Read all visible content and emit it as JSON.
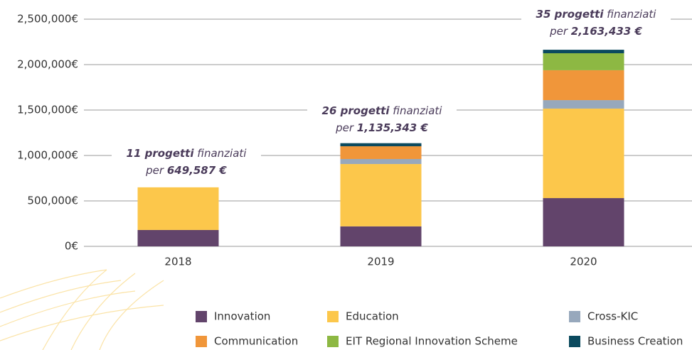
{
  "chart_data": {
    "type": "stacked-bar",
    "categories": [
      "2018",
      "2019",
      "2020"
    ],
    "series": [
      {
        "name": "Innovation",
        "color": "#62446b",
        "values": [
          180000,
          220000,
          531000
        ]
      },
      {
        "name": "Education",
        "color": "#fcc74b",
        "values": [
          469587,
          686000,
          985000
        ]
      },
      {
        "name": "Cross-KIC",
        "color": "#97a8bc",
        "values": [
          0,
          55000,
          93000
        ]
      },
      {
        "name": "Communication",
        "color": "#f0963a",
        "values": [
          0,
          140343,
          329000
        ]
      },
      {
        "name": "EIT Regional Innovation Scheme",
        "color": "#8db843",
        "values": [
          0,
          0,
          187000
        ]
      },
      {
        "name": "Business Creation",
        "color": "#0b4a5e",
        "values": [
          0,
          34000,
          38433
        ]
      }
    ],
    "ylim": [
      0,
      2500000
    ],
    "yticks": [
      {
        "value": 0,
        "label": "0€"
      },
      {
        "value": 500000,
        "label": "500,000€"
      },
      {
        "value": 1000000,
        "label": "1,000,000€"
      },
      {
        "value": 1500000,
        "label": "1,500,000€"
      },
      {
        "value": 2000000,
        "label": "2,000,000€"
      },
      {
        "value": 2500000,
        "label": "2,500,000€"
      }
    ],
    "grid": true,
    "annotations": [
      {
        "count": "11 progetti",
        "text": "finanziati",
        "prefix": "per",
        "amount": "649,587 €"
      },
      {
        "count": "26 progetti",
        "text": "finanziati",
        "prefix": "per",
        "amount": "1,135,343 €"
      },
      {
        "count": "35 progetti",
        "text": "finanziati",
        "prefix": "per",
        "amount": "2,163,433 €"
      }
    ]
  }
}
